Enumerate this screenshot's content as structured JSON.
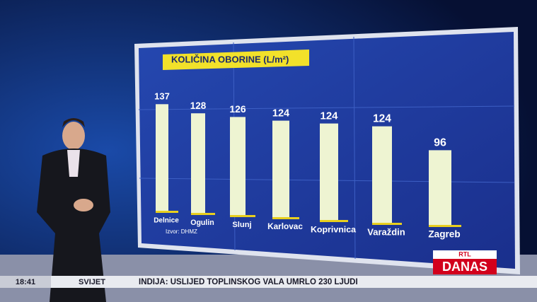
{
  "chart_data": {
    "type": "bar",
    "title": "KOLIČINA OBORINE (L/m²)",
    "categories": [
      "Delnice",
      "Ogulin",
      "Slunj",
      "Karlovac",
      "Koprivnica",
      "Varaždin",
      "Zagreb"
    ],
    "values": [
      137,
      128,
      126,
      124,
      124,
      124,
      96
    ],
    "color": "#eef4d2"
  },
  "source": "Izvor: DHMZ",
  "ticker": {
    "time": "18:41",
    "section": "SVIJET",
    "headline": "INDIJA: USLIJED TOPLINSKOG VALA UMRLO 230 LJUDI"
  },
  "logo": {
    "top": "RTL",
    "bottom": "DANAS"
  }
}
